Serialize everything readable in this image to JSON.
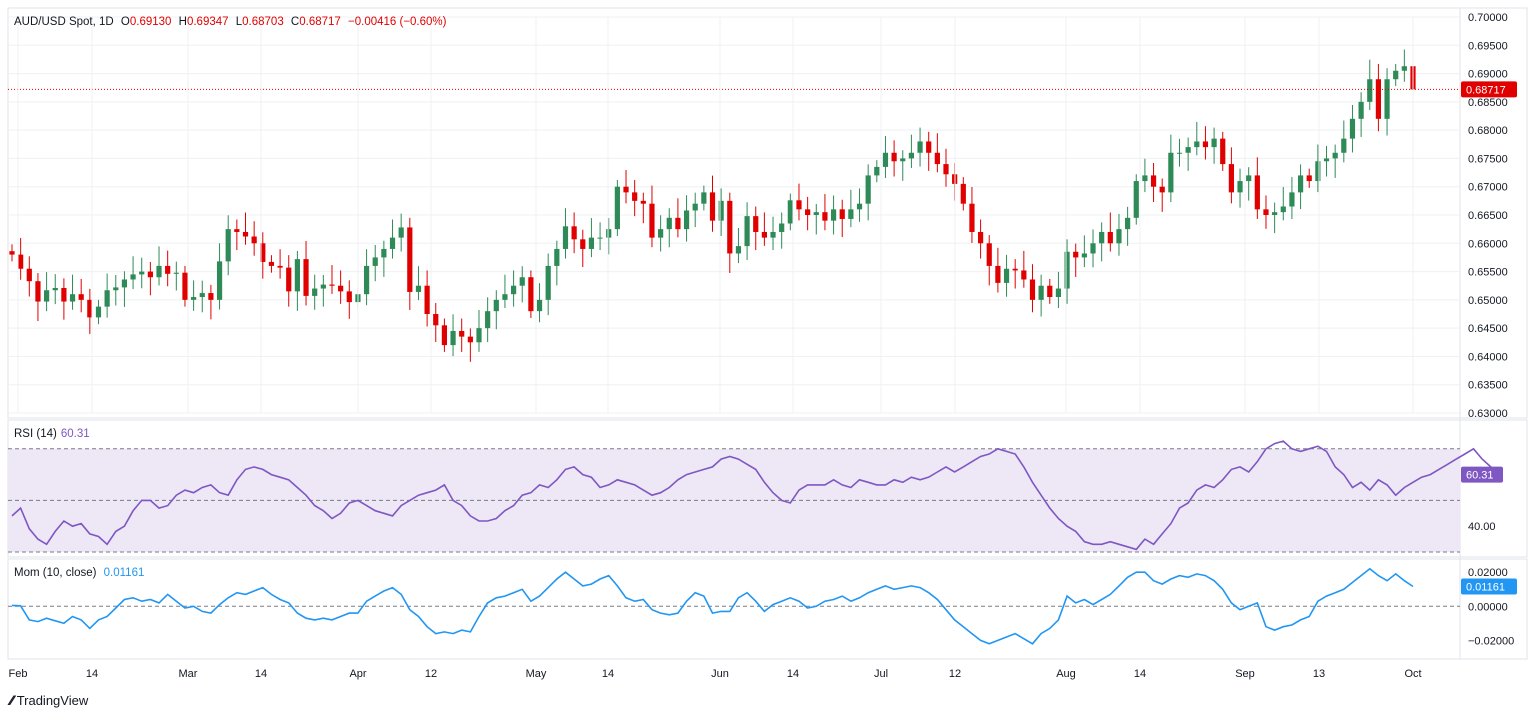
{
  "header": {
    "symbol": "AUD/USD Spot, 1D",
    "open_label": "O",
    "open": "0.69130",
    "high_label": "H",
    "high": "0.69347",
    "low_label": "L",
    "low": "0.68703",
    "close_label": "C",
    "close": "0.68717",
    "change": "−0.00416 (−0.60%)"
  },
  "rsi_header": {
    "title": "RSI (14)",
    "value": "60.31"
  },
  "mom_header": {
    "title": "Mom (10, close)",
    "value": "0.01161"
  },
  "branding": {
    "name": "TradingView"
  },
  "colors": {
    "up": "#26a69a",
    "up_body": "#2e8b57",
    "down": "#e00000",
    "rsi": "#7e57c2",
    "rsi_band": "#ede7f6",
    "mom": "#2196f3",
    "grid": "#eef0f3"
  },
  "chart_data": [
    {
      "type": "candlestick",
      "title": "AUD/USD Spot, 1D",
      "ylim": [
        0.63,
        0.7
      ],
      "y_ticks": [
        "0.70000",
        "0.69500",
        "0.69000",
        "0.68500",
        "0.68000",
        "0.67500",
        "0.67000",
        "0.66500",
        "0.66000",
        "0.65500",
        "0.65000",
        "0.64500",
        "0.64000",
        "0.63500",
        "0.63000"
      ],
      "x_ticks": [
        "Feb",
        "14",
        "Mar",
        "14",
        "Apr",
        "12",
        "May",
        "14",
        "Jun",
        "14",
        "Jul",
        "12",
        "Aug",
        "14",
        "Sep",
        "13",
        "Oct"
      ],
      "last_price_label": "0.68717",
      "closes": [
        0.658,
        0.6555,
        0.6533,
        0.6497,
        0.6517,
        0.6521,
        0.6497,
        0.651,
        0.65,
        0.6469,
        0.6488,
        0.6517,
        0.6522,
        0.6536,
        0.6545,
        0.655,
        0.654,
        0.656,
        0.6546,
        0.6548,
        0.65,
        0.6505,
        0.6512,
        0.65,
        0.6568,
        0.6625,
        0.662,
        0.6612,
        0.66,
        0.6567,
        0.656,
        0.6557,
        0.6515,
        0.6572,
        0.6507,
        0.652,
        0.6527,
        0.6525,
        0.6515,
        0.6496,
        0.651,
        0.656,
        0.6575,
        0.659,
        0.661,
        0.6628,
        0.6514,
        0.6525,
        0.6475,
        0.6455,
        0.642,
        0.6445,
        0.6435,
        0.6425,
        0.645,
        0.648,
        0.65,
        0.651,
        0.6525,
        0.654,
        0.648,
        0.65,
        0.656,
        0.659,
        0.663,
        0.6607,
        0.659,
        0.661,
        0.661,
        0.6625,
        0.67,
        0.669,
        0.6675,
        0.667,
        0.661,
        0.6625,
        0.6645,
        0.6625,
        0.6658,
        0.667,
        0.669,
        0.664,
        0.6675,
        0.6582,
        0.6595,
        0.6648,
        0.662,
        0.661,
        0.662,
        0.6635,
        0.6676,
        0.666,
        0.665,
        0.6655,
        0.664,
        0.666,
        0.6643,
        0.666,
        0.667,
        0.672,
        0.6735,
        0.676,
        0.6745,
        0.675,
        0.676,
        0.678,
        0.676,
        0.674,
        0.6722,
        0.6705,
        0.667,
        0.662,
        0.66,
        0.656,
        0.653,
        0.6555,
        0.6552,
        0.6536,
        0.65,
        0.6525,
        0.6505,
        0.652,
        0.6585,
        0.6575,
        0.6582,
        0.66,
        0.662,
        0.66,
        0.6625,
        0.6645,
        0.671,
        0.672,
        0.67,
        0.669,
        0.676,
        0.676,
        0.677,
        0.678,
        0.677,
        0.6785,
        0.674,
        0.669,
        0.671,
        0.672,
        0.666,
        0.665,
        0.6655,
        0.6665,
        0.669,
        0.672,
        0.671,
        0.6745,
        0.675,
        0.676,
        0.6785,
        0.682,
        0.685,
        0.689,
        0.682,
        0.689,
        0.6905,
        0.6913,
        0.6872
      ],
      "overlay": "red dotted horizontal line at last close 0.68717"
    },
    {
      "type": "line",
      "title": "RSI (14)",
      "series_name": "RSI (14)",
      "value_label": "60.31",
      "band": [
        30,
        70
      ],
      "y_ticks": [
        "40.00"
      ],
      "values": [
        44,
        47,
        39,
        35,
        33,
        38,
        42,
        40,
        41,
        37,
        36,
        33,
        38,
        40,
        46,
        50,
        50,
        47,
        48,
        52,
        54,
        53,
        55,
        56,
        53,
        52,
        58,
        62,
        63,
        62,
        60,
        59,
        58,
        55,
        52,
        48,
        46,
        43,
        45,
        49,
        50,
        48,
        46,
        45,
        44,
        48,
        50,
        52,
        53,
        54,
        56,
        50,
        48,
        44,
        42,
        42,
        43,
        46,
        48,
        52,
        53,
        56,
        55,
        58,
        62,
        63,
        60,
        59,
        55,
        56,
        58,
        57,
        56,
        54,
        52,
        53,
        55,
        58,
        60,
        61,
        62,
        63,
        66,
        67,
        66,
        64,
        62,
        57,
        53,
        50,
        49,
        54,
        56,
        56,
        56,
        58,
        56,
        55,
        58,
        57,
        56,
        56,
        58,
        57,
        59,
        58,
        59,
        61,
        63,
        61,
        63,
        65,
        67,
        68,
        70,
        69,
        68,
        63,
        57,
        52,
        47,
        43,
        40,
        38,
        34,
        33,
        33,
        34,
        33,
        32,
        31,
        35,
        33,
        37,
        41,
        47,
        49,
        54,
        56,
        55,
        58,
        62,
        63,
        61,
        65,
        70,
        72,
        73,
        70,
        69,
        70,
        71,
        69,
        63,
        60,
        55,
        57,
        54,
        58,
        56,
        52,
        55,
        57,
        59,
        60,
        62,
        64,
        66,
        68,
        70,
        66,
        63,
        60
      ],
      "ylim": [
        30,
        80
      ]
    },
    {
      "type": "line",
      "title": "Mom (10, close)",
      "series_name": "Mom (10, close)",
      "value_label": "0.01161",
      "y_ticks": [
        "0.02000",
        "0.00000",
        "−0.02000"
      ],
      "values": [
        0.0005,
        0.0003,
        -0.008,
        -0.009,
        -0.007,
        -0.0085,
        -0.01,
        -0.006,
        -0.008,
        -0.013,
        -0.008,
        -0.006,
        -0.001,
        0.004,
        0.005,
        0.003,
        0.004,
        0.002,
        0.007,
        0.003,
        -0.001,
        0.0,
        -0.003,
        -0.004,
        0.001,
        0.005,
        0.008,
        0.007,
        0.009,
        0.011,
        0.007,
        0.004,
        0.002,
        -0.004,
        -0.007,
        -0.008,
        -0.007,
        -0.008,
        -0.006,
        -0.004,
        -0.004,
        0.003,
        0.006,
        0.009,
        0.011,
        0.007,
        -0.002,
        -0.006,
        -0.012,
        -0.016,
        -0.015,
        -0.016,
        -0.014,
        -0.015,
        -0.006,
        0.002,
        0.005,
        0.006,
        0.008,
        0.01,
        0.003,
        0.006,
        0.011,
        0.016,
        0.02,
        0.016,
        0.012,
        0.013,
        0.016,
        0.018,
        0.012,
        0.005,
        0.003,
        0.004,
        -0.002,
        -0.004,
        -0.005,
        -0.004,
        0.003,
        0.008,
        0.006,
        -0.004,
        -0.003,
        -0.003,
        0.005,
        0.008,
        0.003,
        -0.003,
        0.001,
        0.003,
        0.005,
        0.003,
        -0.001,
        0.0,
        0.003,
        0.004,
        0.006,
        0.003,
        0.005,
        0.008,
        0.01,
        0.012,
        0.01,
        0.011,
        0.012,
        0.011,
        0.008,
        0.004,
        -0.002,
        -0.008,
        -0.012,
        -0.016,
        -0.02,
        -0.022,
        -0.02,
        -0.018,
        -0.016,
        -0.019,
        -0.022,
        -0.016,
        -0.013,
        -0.008,
        0.006,
        0.002,
        0.004,
        0.001,
        0.004,
        0.007,
        0.012,
        0.017,
        0.02,
        0.02,
        0.015,
        0.013,
        0.016,
        0.018,
        0.017,
        0.019,
        0.018,
        0.015,
        0.01,
        0.002,
        -0.002,
        0.0,
        0.002,
        -0.012,
        -0.014,
        -0.012,
        -0.011,
        -0.008,
        -0.006,
        0.003,
        0.006,
        0.008,
        0.01,
        0.014,
        0.018,
        0.022,
        0.018,
        0.015,
        0.019,
        0.015,
        0.0116
      ],
      "ylim": [
        -0.028,
        0.026
      ]
    }
  ]
}
